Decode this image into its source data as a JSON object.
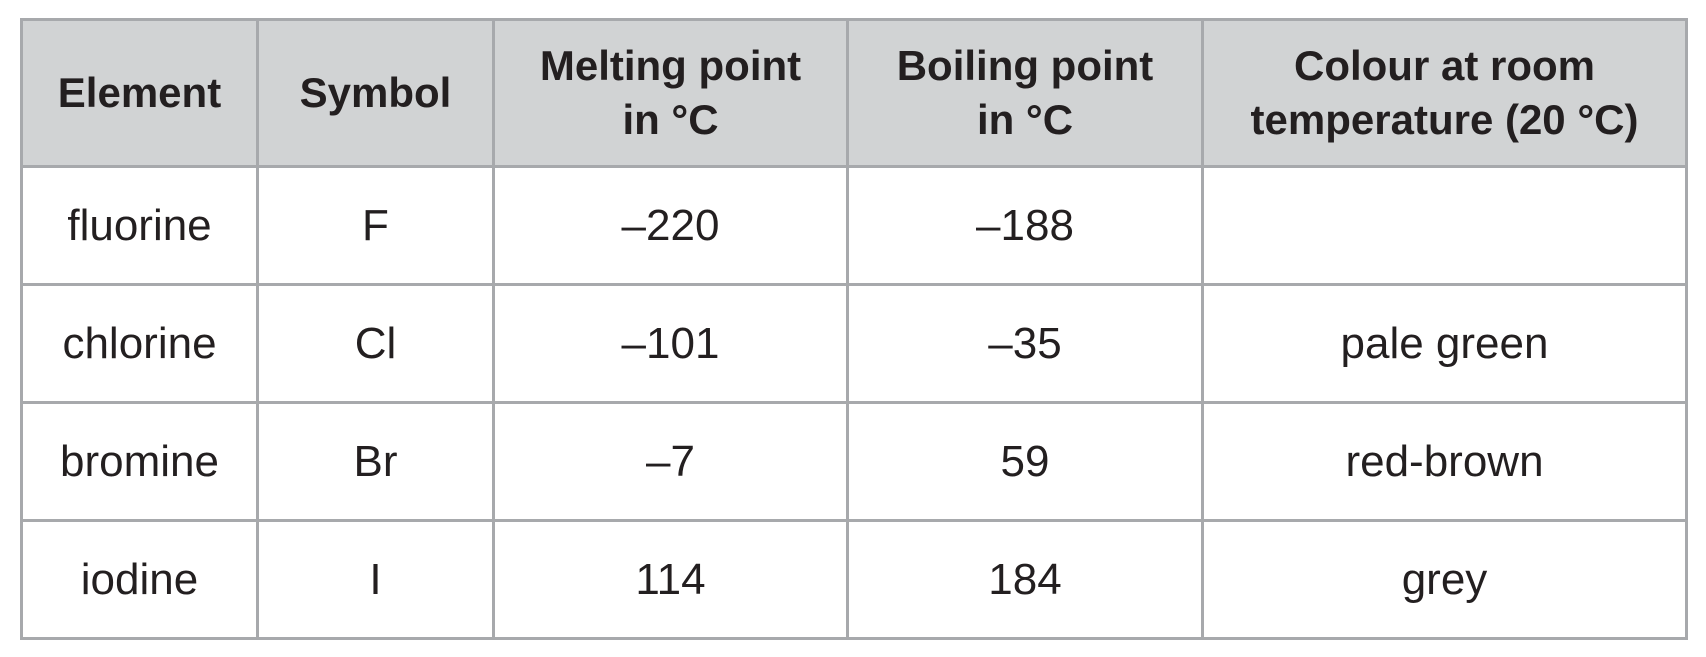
{
  "table": {
    "columns": [
      [
        "Element"
      ],
      [
        "Symbol"
      ],
      [
        "Melting point",
        "in °C"
      ],
      [
        "Boiling point",
        "in °C"
      ],
      [
        "Colour at room",
        "temperature (20 °C)"
      ]
    ],
    "rows": [
      [
        "fluorine",
        "F",
        "–220",
        "–188"
      ],
      [
        "chlorine",
        "Cl",
        "–101",
        "–35",
        "pale green"
      ],
      [
        "bromine",
        "Br",
        "–7",
        "59",
        "red-brown"
      ],
      [
        "iodine",
        "I",
        "114",
        "184",
        "grey"
      ]
    ]
  }
}
